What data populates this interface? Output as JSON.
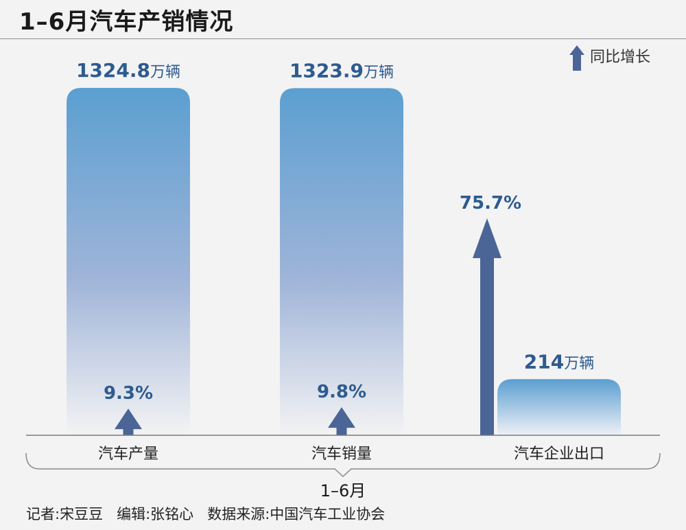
{
  "title": "1–6月汽车产销情况",
  "legend": {
    "label": "同比增长",
    "color": "#4b6596"
  },
  "period_label": "1–6月",
  "unit": "万辆",
  "footer": {
    "credits": "记者:宋豆豆   编辑:张铭心   数据来源:中国汽车工业协会"
  },
  "colors": {
    "bar_top": "#5b9fd1",
    "bar_bottom": "#f3f3f4",
    "arrow": "#4b6596",
    "label": "#2e5b8f",
    "axis": "#7a7a7a"
  },
  "chart_data": {
    "type": "bar",
    "categories": [
      "汽车产量",
      "汽车销量",
      "汽车企业出口"
    ],
    "series": [
      {
        "values": [
          1324.8,
          1323.9,
          214
        ],
        "value_labels": [
          "1324.8",
          "1323.9",
          "214"
        ],
        "unit": "万辆"
      },
      {
        "values": [
          9.3,
          9.8,
          75.7
        ],
        "value_labels": [
          "9.3%",
          "9.8%",
          "75.7%"
        ]
      }
    ],
    "legend_position": "top-right",
    "grid": false
  }
}
